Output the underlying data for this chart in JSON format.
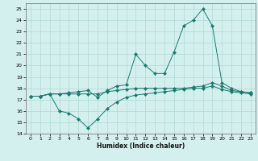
{
  "title": "",
  "xlabel": "Humidex (Indice chaleur)",
  "background_color": "#d4f0ee",
  "grid_color": "#b0d8d4",
  "line_color": "#1a7a6e",
  "xlim": [
    -0.5,
    23.5
  ],
  "ylim": [
    14,
    25.5
  ],
  "yticks": [
    14,
    15,
    16,
    17,
    18,
    19,
    20,
    21,
    22,
    23,
    24,
    25
  ],
  "xticks": [
    0,
    1,
    2,
    3,
    4,
    5,
    6,
    7,
    8,
    9,
    10,
    11,
    12,
    13,
    14,
    15,
    16,
    17,
    18,
    19,
    20,
    21,
    22,
    23
  ],
  "series": [
    {
      "x": [
        0,
        1,
        2,
        3,
        4,
        5,
        6,
        7,
        8,
        9,
        10,
        11,
        12,
        13,
        14,
        15,
        16,
        17,
        18,
        19,
        20,
        21,
        22,
        23
      ],
      "y": [
        17.3,
        17.3,
        17.5,
        17.5,
        17.6,
        17.7,
        17.8,
        17.2,
        17.8,
        18.2,
        18.3,
        21.0,
        20.0,
        19.3,
        19.3,
        21.2,
        23.5,
        24.0,
        25.0,
        23.5,
        18.5,
        18.0,
        17.7,
        17.6
      ]
    },
    {
      "x": [
        0,
        1,
        2,
        3,
        4,
        5,
        6,
        7,
        8,
        9,
        10,
        11,
        12,
        13,
        14,
        15,
        16,
        17,
        18,
        19,
        20,
        21,
        22,
        23
      ],
      "y": [
        17.3,
        17.3,
        17.5,
        17.5,
        17.5,
        17.5,
        17.5,
        17.5,
        17.7,
        17.8,
        17.9,
        18.0,
        18.0,
        18.0,
        18.0,
        18.0,
        18.0,
        18.1,
        18.2,
        18.5,
        18.2,
        17.8,
        17.7,
        17.6
      ]
    },
    {
      "x": [
        0,
        1,
        2,
        3,
        4,
        5,
        6,
        7,
        8,
        9,
        10,
        11,
        12,
        13,
        14,
        15,
        16,
        17,
        18,
        19,
        20,
        21,
        22,
        23
      ],
      "y": [
        17.3,
        17.3,
        17.5,
        16.0,
        15.8,
        15.3,
        14.5,
        15.3,
        16.2,
        16.8,
        17.2,
        17.4,
        17.5,
        17.6,
        17.7,
        17.8,
        17.9,
        18.0,
        18.0,
        18.2,
        17.9,
        17.7,
        17.6,
        17.5
      ]
    }
  ]
}
